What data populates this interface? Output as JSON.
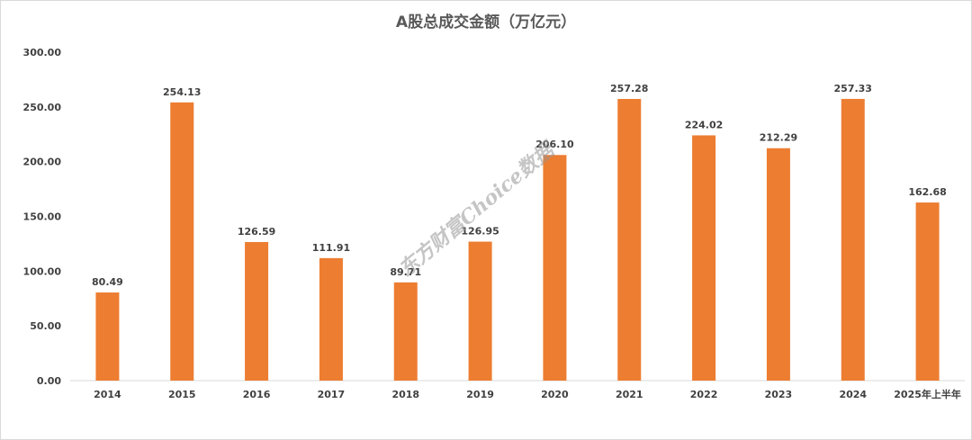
{
  "chart_data": {
    "type": "bar",
    "title": "A股总成交金额（万亿元）",
    "categories": [
      "2014",
      "2015",
      "2016",
      "2017",
      "2018",
      "2019",
      "2020",
      "2021",
      "2022",
      "2023",
      "2024",
      "2025年上半年"
    ],
    "values": [
      80.49,
      254.13,
      126.59,
      111.91,
      89.71,
      126.95,
      206.1,
      257.28,
      224.02,
      212.29,
      257.33,
      162.68
    ],
    "value_labels": [
      "80.49",
      "254.13",
      "126.59",
      "111.91",
      "89.71",
      "126.95",
      "206.10",
      "257.28",
      "224.02",
      "212.29",
      "257.33",
      "162.68"
    ],
    "yticks": [
      "0.00",
      "50.00",
      "100.00",
      "150.00",
      "200.00",
      "250.00",
      "300.00"
    ],
    "ylim": [
      0,
      300
    ],
    "grid": false,
    "legend": "none",
    "bar_color": "#ed7d31"
  },
  "watermark": "东方财富Choice数据"
}
